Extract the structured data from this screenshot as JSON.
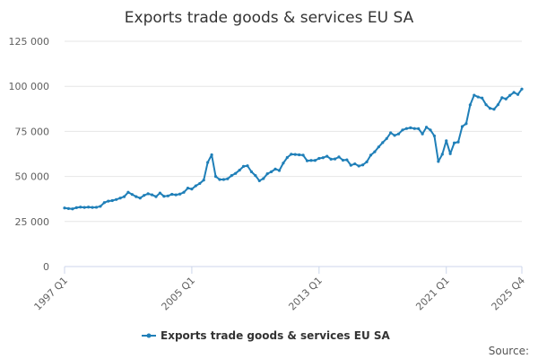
{
  "chart_data": {
    "type": "line",
    "title": "Exports trade goods & services EU SA",
    "xlabel": "",
    "ylabel": "",
    "ylim": [
      0,
      125000
    ],
    "yticks": [
      "0",
      "25 000",
      "50 000",
      "75 000",
      "100 000",
      "125 000"
    ],
    "ytick_values": [
      0,
      25000,
      50000,
      75000,
      100000,
      125000
    ],
    "xticks": [
      "1997 Q1",
      "2005 Q1",
      "2013 Q1",
      "2021 Q1",
      "2025 Q4"
    ],
    "grid": "horizontal",
    "legend_position": "bottom-center",
    "color": "#1f7fb8",
    "series": [
      {
        "name": "Exports trade goods & services EU SA",
        "x": [
          "1997 Q1",
          "1997 Q2",
          "1997 Q3",
          "1997 Q4",
          "1998 Q1",
          "1998 Q2",
          "1998 Q3",
          "1998 Q4",
          "1999 Q1",
          "1999 Q2",
          "1999 Q3",
          "1999 Q4",
          "2000 Q1",
          "2000 Q2",
          "2000 Q3",
          "2000 Q4",
          "2001 Q1",
          "2001 Q2",
          "2001 Q3",
          "2001 Q4",
          "2002 Q1",
          "2002 Q2",
          "2002 Q3",
          "2002 Q4",
          "2003 Q1",
          "2003 Q2",
          "2003 Q3",
          "2003 Q4",
          "2004 Q1",
          "2004 Q2",
          "2004 Q3",
          "2004 Q4",
          "2005 Q1",
          "2005 Q2",
          "2005 Q3",
          "2005 Q4",
          "2006 Q1",
          "2006 Q2",
          "2006 Q3",
          "2006 Q4",
          "2007 Q1",
          "2007 Q2",
          "2007 Q3",
          "2007 Q4",
          "2008 Q1",
          "2008 Q2",
          "2008 Q3",
          "2008 Q4",
          "2009 Q1",
          "2009 Q2",
          "2009 Q3",
          "2009 Q4",
          "2010 Q1",
          "2010 Q2",
          "2010 Q3",
          "2010 Q4",
          "2011 Q1",
          "2011 Q2",
          "2011 Q3",
          "2011 Q4",
          "2012 Q1",
          "2012 Q2",
          "2012 Q3",
          "2012 Q4",
          "2013 Q1",
          "2013 Q2",
          "2013 Q3",
          "2013 Q4",
          "2014 Q1",
          "2014 Q2",
          "2014 Q3",
          "2014 Q4",
          "2015 Q1",
          "2015 Q2",
          "2015 Q3",
          "2015 Q4",
          "2016 Q1",
          "2016 Q2",
          "2016 Q3",
          "2016 Q4",
          "2017 Q1",
          "2017 Q2",
          "2017 Q3",
          "2017 Q4",
          "2018 Q1",
          "2018 Q2",
          "2018 Q3",
          "2018 Q4",
          "2019 Q1",
          "2019 Q2",
          "2019 Q3",
          "2019 Q4",
          "2020 Q1",
          "2020 Q2",
          "2020 Q3",
          "2020 Q4",
          "2021 Q1",
          "2021 Q2",
          "2021 Q3",
          "2021 Q4",
          "2022 Q1",
          "2022 Q2",
          "2022 Q3",
          "2022 Q4",
          "2023 Q1",
          "2023 Q2",
          "2023 Q3",
          "2023 Q4",
          "2024 Q1",
          "2024 Q2",
          "2024 Q3",
          "2024 Q4",
          "2025 Q1",
          "2025 Q2",
          "2025 Q3",
          "2025 Q4"
        ],
        "values": [
          32500,
          32200,
          32000,
          32700,
          33000,
          32800,
          33000,
          32800,
          32900,
          33400,
          35500,
          36300,
          36600,
          37200,
          38000,
          38800,
          41200,
          40000,
          38800,
          38000,
          39500,
          40400,
          39800,
          38800,
          40800,
          39000,
          39200,
          40100,
          39800,
          40200,
          41200,
          43500,
          43000,
          44800,
          46100,
          48000,
          57800,
          62000,
          50000,
          48300,
          48300,
          48700,
          50500,
          51700,
          53500,
          55600,
          55900,
          52600,
          50500,
          47600,
          48800,
          51500,
          52600,
          54100,
          53300,
          57400,
          60500,
          62300,
          62200,
          62000,
          61800,
          58700,
          58900,
          58900,
          60000,
          60400,
          61200,
          59600,
          59700,
          60800,
          59000,
          59200,
          56200,
          57000,
          55800,
          56400,
          58100,
          61800,
          63700,
          66400,
          68800,
          71000,
          74200,
          72800,
          73600,
          75800,
          76600,
          77000,
          76600,
          76500,
          73600,
          77300,
          75800,
          72500,
          58300,
          62300,
          69800,
          62600,
          68600,
          69100,
          77700,
          79300,
          89700,
          95100,
          94100,
          93500,
          89800,
          87800,
          87300,
          89800,
          93700,
          93000,
          95000,
          96600,
          95500,
          98500
        ]
      }
    ],
    "legend": [
      "Exports trade goods & services EU SA"
    ],
    "credit": "Source:"
  }
}
